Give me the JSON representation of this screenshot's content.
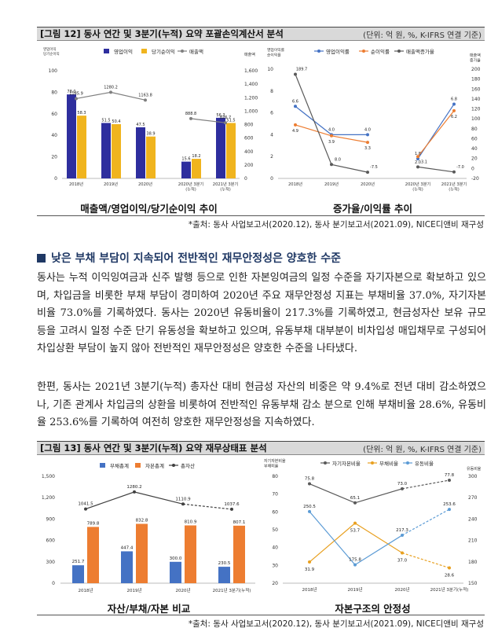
{
  "fig12": {
    "title": "[그림 12] 동사 연간 및 3분기(누적) 요약 포괄손익계산서 분석",
    "unit": "(단위: 억 원, %, K-IFRS 연결 기준)",
    "left_caption": "매출액/영업이익/당기순이익 추이",
    "right_caption": "증가율/이익률 추이"
  },
  "source1": "*출처: 동사 사업보고서(2020.12), 동사 분기보고서(2021.09), NICE디앤비 재구성",
  "section_title": "낮은 부채 부담이 지속되어 전반적인 재무안정성은 양호한 수준",
  "paragraphs": [
    "동사는 누적 이익잉여금과 신주 발행 등으로 인한 자본잉여금의 일정 수준을 자기자본으로 확보하고 있으며, 차입금을 비롯한 부채 부담이 경미하여 2020년 주요 재무안정성 지표는 부채비율 37.0%, 자기자본비율 73.0%를 기록하였다. 동사는 2020년 유동비율이 217.3%를 기록하였고, 현금성자산 보유 규모 등을 고려시 일정 수준 단기 유동성을 확보하고 있으며, 유동부채 대부분이 비차입성 매입채무로 구성되어 차입상환 부담이 높지 않아 전반적인 재무안정성은 양호한 수준을 나타냈다.",
    "한편, 동사는 2021년 3분기(누적) 총자산 대비 현금성 자산의 비중은 약 9.4%로 전년 대비 감소하였으나, 기존 관계사 차입금의 상환을 비롯하여 전반적인 유동부채 감소 분으로 인해 부채비율 28.6%, 유동비율 253.6%를 기록하여 여전히 양호한 재무안정성을 지속하였다."
  ],
  "fig13": {
    "title": "[그림 13] 동사 연간 및 3분기(누적) 요약 재무상태표 분석",
    "unit": "(단위: 억 원, %, K-IFRS 연결 기준)",
    "left_caption": "자산/부채/자본 비교",
    "right_caption": "자본구조의 안정성"
  },
  "source2": "*출처: 동사 사업보고서(2020.12), 동사 분기보고서(2021.09), NICE디앤비 재구성",
  "chart_data": [
    {
      "type": "bar",
      "left_axis_title": "영업이익\n당기순이익",
      "right_axis_title": "매출액",
      "categories": [
        "2018년",
        "2019년",
        "2020년",
        "2020년 3분기\n(누적)",
        "2021년 3분기\n(누적)"
      ],
      "series": [
        {
          "name": "영업이익",
          "kind": "bar",
          "axis": "left",
          "color": "#2e2e9e",
          "values": [
            78.0,
            51.5,
            47.5,
            15.6,
            56.3
          ]
        },
        {
          "name": "당기순이익",
          "kind": "bar",
          "axis": "left",
          "color": "#f0b41e",
          "values": [
            58.3,
            50.4,
            38.9,
            18.2,
            51.5
          ]
        },
        {
          "name": "매출액",
          "kind": "line",
          "axis": "right",
          "color": "#7f7f7f",
          "values": [
            1185.9,
            1280.2,
            1163.8,
            888.8,
            826.7
          ]
        }
      ],
      "ylim_left": [
        0,
        100
      ],
      "ylim_right": [
        0,
        1600
      ],
      "yticks_left": [
        0,
        20,
        40,
        60,
        80,
        100
      ],
      "yticks_right": [
        0,
        200,
        400,
        600,
        800,
        1000,
        1200,
        1400,
        1600
      ]
    },
    {
      "type": "line",
      "left_axis_title": "영업이익률\n순이익률",
      "right_axis_title": "매출액\n증가율",
      "categories": [
        "2018년",
        "2019년",
        "2020년",
        "2020년 3분기\n(누적)",
        "2021년 3분기\n(누적)"
      ],
      "series": [
        {
          "name": "영업이익률",
          "axis": "left",
          "color": "#4472c4",
          "values": [
            6.6,
            4.0,
            4.0,
            1.8,
            6.8
          ]
        },
        {
          "name": "순이익률",
          "axis": "left",
          "color": "#ed7d31",
          "values": [
            4.9,
            3.9,
            3.3,
            2.0,
            6.2
          ]
        },
        {
          "name": "매출액증가율",
          "axis": "right",
          "color": "#595959",
          "values": [
            189.7,
            8.0,
            -7.5,
            3.1,
            -7.0
          ]
        }
      ],
      "ylim_left": [
        0,
        10
      ],
      "ylim_right": [
        -20,
        200
      ],
      "yticks_left": [
        0,
        2,
        4,
        6,
        8,
        10
      ],
      "yticks_right": [
        -20,
        0,
        20,
        40,
        60,
        80,
        100,
        120,
        140,
        160,
        180,
        200
      ]
    },
    {
      "type": "bar",
      "categories": [
        "2018년",
        "2019년",
        "2020년",
        "2021년 3분기(누적)"
      ],
      "series": [
        {
          "name": "부채총계",
          "kind": "bar",
          "color": "#4472c4",
          "values": [
            251.7,
            447.4,
            300.0,
            230.5
          ]
        },
        {
          "name": "자본총계",
          "kind": "bar",
          "color": "#ed7d31",
          "values": [
            789.8,
            832.8,
            810.9,
            807.1
          ]
        },
        {
          "name": "총자산",
          "kind": "line",
          "color": "#404040",
          "values": [
            1041.5,
            1280.2,
            1110.9,
            1037.6
          ]
        }
      ],
      "ylim": [
        0,
        1500
      ],
      "yticks": [
        0,
        300,
        600,
        900,
        1200,
        1500
      ]
    },
    {
      "type": "line",
      "left_axis_title": "자기자본비율\n부채비율",
      "right_axis_title": "유동비율",
      "categories": [
        "2018년",
        "2019년",
        "2020년",
        "2021년 3분기(누적)"
      ],
      "series": [
        {
          "name": "자기자본비율",
          "axis": "left",
          "color": "#595959",
          "values": [
            75.8,
            65.1,
            73.0,
            77.8
          ]
        },
        {
          "name": "부채비율",
          "axis": "left",
          "color": "#e8a020",
          "values": [
            31.9,
            53.7,
            37.0,
            28.6
          ]
        },
        {
          "name": "유동비율",
          "axis": "right",
          "color": "#5b9bd5",
          "values": [
            250.5,
            175.8,
            217.3,
            253.6
          ]
        }
      ],
      "ylim_left": [
        20,
        80
      ],
      "ylim_right": [
        150,
        300
      ],
      "yticks_left": [
        20,
        30,
        40,
        50,
        60,
        70,
        80
      ],
      "yticks_right": [
        150,
        180,
        210,
        240,
        270,
        300
      ]
    }
  ]
}
